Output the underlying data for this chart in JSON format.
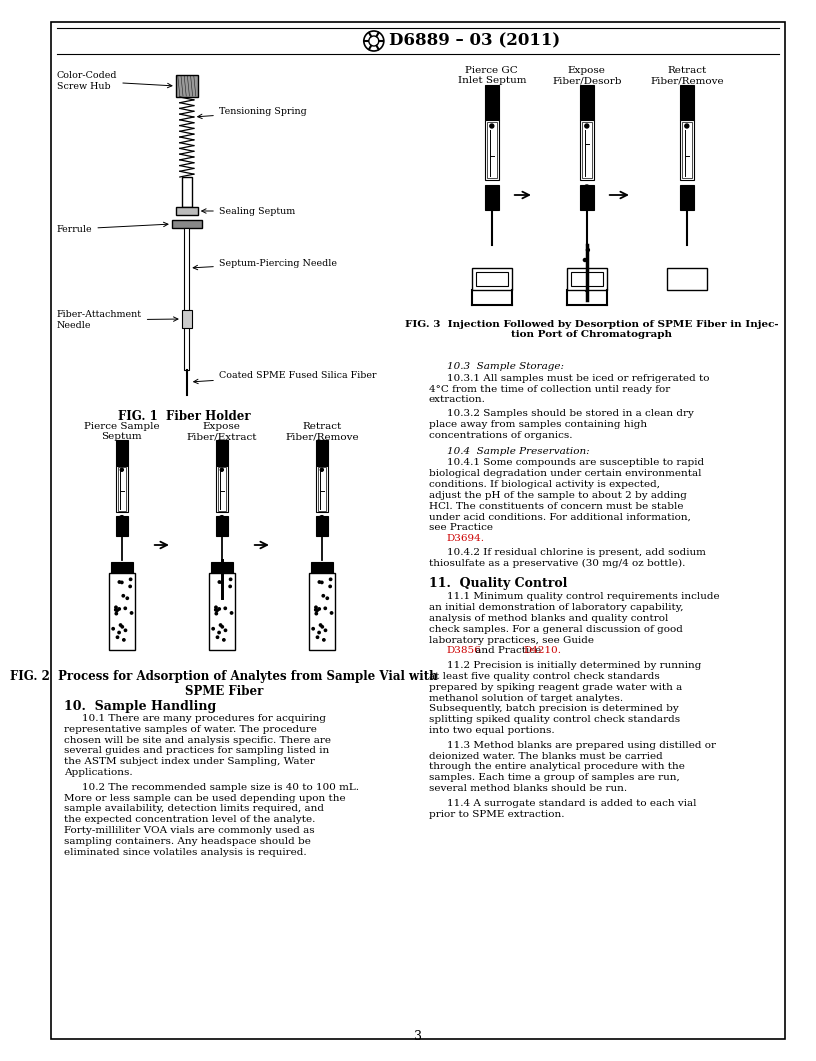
{
  "title": "D6889 – 03 (2011)",
  "fig1_caption": "FIG. 1  Fiber Holder",
  "fig2_caption": "FIG. 2  Process for Adsorption of Analytes from Sample Vial with\nSPME Fiber",
  "fig3_caption": "FIG. 3  Injection Followed by Desorption of SPME Fiber in Injec-\ntion Port of Chromatograph",
  "fig2_labels": [
    "Pierce Sample\nSeptum",
    "Expose\nFiber/Extract",
    "Retract\nFiber/Remove"
  ],
  "fig3_labels": [
    "Pierce GC\nInlet Septum",
    "Expose\nFiber/Desorb",
    "Retract\nFiber/Remove"
  ],
  "fig1_labels": [
    "Color-Coded\nScrew Hub",
    "Tensioning Spring",
    "Sealing Septum",
    "Ferrule",
    "Septum-Piercing Needle",
    "Fiber-Attachment\nNeedle",
    "Coated SPME Fused Silica Fiber"
  ],
  "section10_title": "10.  Sample Handling",
  "section10_1": "10.1  There are many procedures for acquiring representative samples of water. The procedure chosen will be site and analysis specific. There are several guides and practices for sampling listed in the ASTM subject index under Sampling, Water Applications.",
  "section10_2": "10.2  The recommended sample size is 40 to 100 mL. More or less sample can be used depending upon the sample availability, detection limits required, and the expected concentration level of the analyte. Forty-milliliter VOA vials are commonly used as sampling containers. Any headspace should be eliminated since volatiles analysis is required.",
  "section10_3_title": "10.3  Sample Storage:",
  "section10_3_1": "10.3.1  All samples must be iced or refrigerated to 4°C from the time of collection until ready for extraction.",
  "section10_3_2": "10.3.2  Samples should be stored in a clean dry place away from samples containing high concentrations of organics.",
  "section10_4_title": "10.4  Sample Preservation:",
  "section10_4_1": "10.4.1  Some compounds are susceptible to rapid biological degradation under certain environmental conditions. If biological activity is expected, adjust the pH of the sample to about 2 by adding HCl. The constituents of concern must be stable under acid conditions. For additional information, see Practice",
  "section10_4_1_ref": "D3694.",
  "section10_4_2": "10.4.2  If residual chlorine is present, add sodium thiosulfate as a preservative (30 mg/4 oz bottle).",
  "section11_title": "11.  Quality Control",
  "section11_1": "11.1  Minimum quality control requirements include an initial demonstration of laboratory capability, analysis of method blanks and quality control check samples. For a general discussion of good laboratory practices, see Guide",
  "section11_1_ref1": "D3856",
  "section11_1_and": " and Practice ",
  "section11_1_ref2": "D4210.",
  "section11_2": "11.2  Precision is initially determined by running at least five quality control check standards prepared by spiking reagent grade water with a methanol solution of target analytes. Subsequently, batch precision is determined by splitting spiked quality control check standards into two equal portions.",
  "section11_3": "11.3  Method blanks are prepared using distilled or deionized water. The blanks must be carried through the entire analytical procedure with the samples. Each time a group of samples are run, several method blanks should be run.",
  "section11_4": "11.4  A surrogate standard is added to each vial prior to SPME extraction.",
  "page_number": "3",
  "background_color": "#ffffff",
  "text_color": "#000000",
  "ref_color": "#cc0000",
  "border_color": "#000000"
}
